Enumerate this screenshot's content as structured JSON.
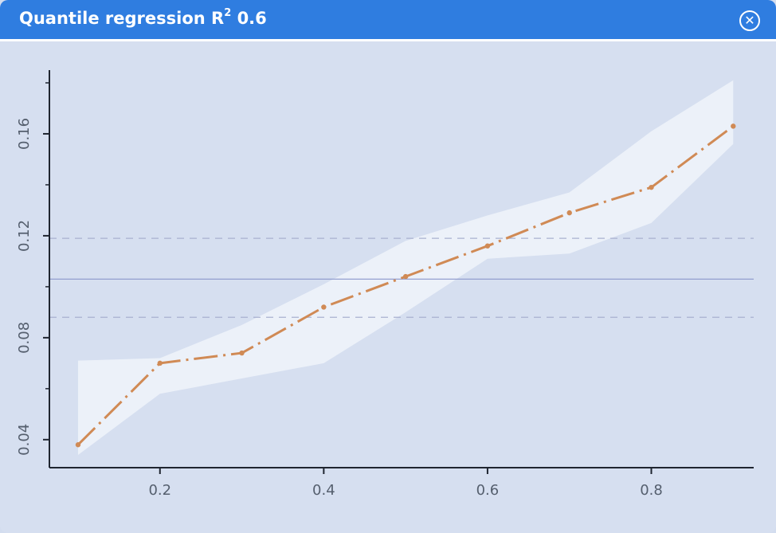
{
  "window": {
    "title_main": "Quantile regression R",
    "title_sup": "2",
    "title_value": "0.6",
    "close_icon": "close-circle-icon"
  },
  "colors": {
    "titlebar": "#2f7de0",
    "plot_bg": "#d6dff0",
    "band": "#eef3fa",
    "line": "#d08a55",
    "ols_line": "#8a97cc",
    "ols_ci": "#a9b1d0",
    "axis": "#1f2530"
  },
  "chart_data": {
    "type": "line",
    "title": "Quantile regression R² 0.6",
    "x": [
      0.1,
      0.2,
      0.3,
      0.4,
      0.5,
      0.6,
      0.7,
      0.8,
      0.9
    ],
    "series": [
      {
        "values": [
          0.038,
          0.07,
          0.074,
          0.092,
          0.104,
          0.116,
          0.129,
          0.139,
          0.163
        ],
        "lower": [
          0.034,
          0.058,
          0.064,
          0.07,
          0.09,
          0.111,
          0.113,
          0.125,
          0.156
        ],
        "upper": [
          0.071,
          0.072,
          0.085,
          0.101,
          0.118,
          0.128,
          0.137,
          0.161,
          0.181
        ],
        "style": "dash-dot"
      }
    ],
    "ols": {
      "value": 0.103,
      "ci_lower": 0.088,
      "ci_upper": 0.119
    },
    "xticks": [
      0.2,
      0.4,
      0.6,
      0.8
    ],
    "xtick_labels": [
      "0.2",
      "0.4",
      "0.6",
      "0.8"
    ],
    "yticks": [
      0.04,
      0.08,
      0.12,
      0.16
    ],
    "ytick_labels": [
      "0.04",
      "0.08",
      "0.12",
      "0.16"
    ],
    "xlim": [
      0.065,
      0.925
    ],
    "ylim": [
      0.029,
      0.185
    ],
    "xlabel": "",
    "ylabel": "",
    "grid": false,
    "legend": "none"
  }
}
